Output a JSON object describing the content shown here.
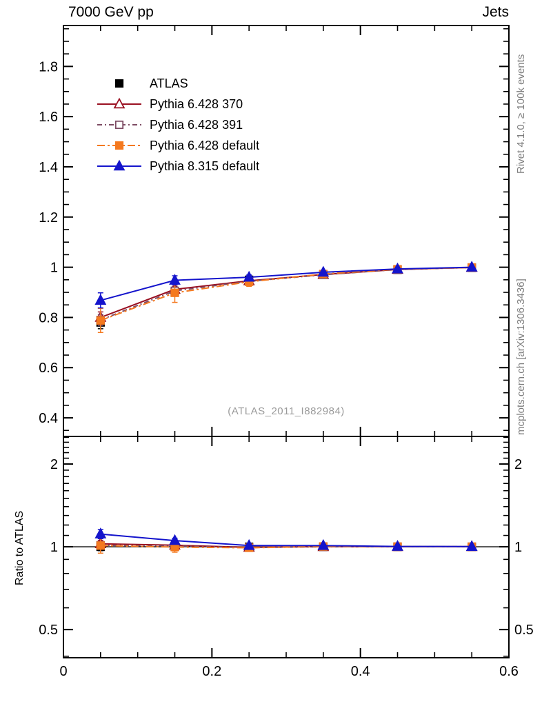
{
  "header": {
    "left": "7000 GeV pp",
    "right": "Jets"
  },
  "captions": {
    "rivet": "Rivet 4.1.0, ≥ 100k events",
    "mcplots": "mcplots.cern.ch [arXiv:1306.3436]"
  },
  "watermark": "(ATLAS_2011_I882984)",
  "chart_data": {
    "type": "line",
    "title": "7000 GeV pp",
    "right_title": "Jets",
    "legend_position": "top-left",
    "x": [
      0.05,
      0.15,
      0.25,
      0.35,
      0.45,
      0.55
    ],
    "xlim": [
      0,
      0.6
    ],
    "x_ticks": [
      {
        "v": 0,
        "label": "0"
      },
      {
        "v": 0.2,
        "label": "0.2"
      },
      {
        "v": 0.4,
        "label": "0.4"
      },
      {
        "v": 0.6,
        "label": "0.6"
      }
    ],
    "x_minor_step": 0.05,
    "main_panel": {
      "scale": "linear",
      "ylim": [
        0.326,
        1.963
      ],
      "minor_step": 0.05,
      "y_ticks": [
        {
          "v": 0.4,
          "label": "0.4"
        },
        {
          "v": 0.6,
          "label": "0.6"
        },
        {
          "v": 0.8,
          "label": "0.8"
        },
        {
          "v": 1.0,
          "label": "1"
        },
        {
          "v": 1.2,
          "label": "1.2"
        },
        {
          "v": 1.4,
          "label": "1.4"
        },
        {
          "v": 1.6,
          "label": "1.6"
        },
        {
          "v": 1.8,
          "label": "1.8"
        }
      ]
    },
    "ratio_panel": {
      "scale": "log",
      "ylim": [
        0.395,
        2.52
      ],
      "ylabel": "Ratio to ATLAS",
      "reference_line": 1,
      "y_ticks": [
        {
          "v": 0.5,
          "label": "0.5"
        },
        {
          "v": 1,
          "label": "1"
        },
        {
          "v": 2,
          "label": "2"
        }
      ]
    },
    "series": [
      {
        "name": "ATLAS",
        "color": "#000000",
        "marker": "square-filled",
        "line": "none",
        "values": [
          0.78,
          0.9,
          0.95,
          0.97,
          0.99,
          0.998
        ],
        "err": [
          0.025,
          0.013,
          0.008,
          0.006,
          0.005,
          0.004
        ],
        "is_reference": true
      },
      {
        "name": "Pythia 6.428 370",
        "color": "#9a1021",
        "marker": "triangle-open",
        "line": "solid",
        "values": [
          0.8,
          0.912,
          0.946,
          0.971,
          0.991,
          0.999
        ],
        "err": [
          0.022,
          0.012,
          0.007,
          0.005,
          0.004,
          0.003
        ]
      },
      {
        "name": "Pythia 6.428 391",
        "color": "#7d4b63",
        "marker": "square-open",
        "line": "dashdot",
        "values": [
          0.79,
          0.906,
          0.944,
          0.97,
          0.991,
          0.999
        ],
        "err": [
          0.022,
          0.012,
          0.007,
          0.005,
          0.004,
          0.003
        ]
      },
      {
        "name": "Pythia 6.428 default",
        "color": "#f4791f",
        "marker": "square-filled",
        "line": "dashdot2",
        "values": [
          0.788,
          0.898,
          0.942,
          0.973,
          0.992,
          0.999
        ],
        "err": [
          0.048,
          0.038,
          0.018,
          0.007,
          0.005,
          0.004
        ]
      },
      {
        "name": "Pythia 8.315 default",
        "color": "#1414cc",
        "marker": "triangle-filled",
        "line": "solid",
        "values": [
          0.868,
          0.948,
          0.96,
          0.98,
          0.993,
          1.0
        ],
        "err": [
          0.03,
          0.018,
          0.009,
          0.005,
          0.004,
          0.003
        ]
      }
    ]
  }
}
